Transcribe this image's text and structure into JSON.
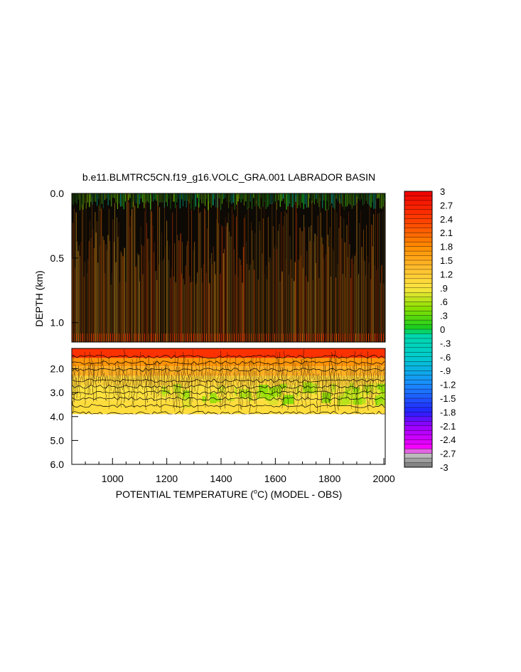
{
  "chart_data": {
    "type": "heatmap",
    "title": "b.e11.BLMTRC5CN.f19_g16.VOLC_GRA.001 LABRADOR BASIN",
    "xlabel_main": "POTENTIAL TEMPERATURE (",
    "xlabel_sup": "o",
    "xlabel_rest": "C) (MODEL - OBS)",
    "ylabel": "DEPTH (km)",
    "x_ticks": [
      "1000",
      "1200",
      "1400",
      "1600",
      "1800",
      "2000"
    ],
    "x_tick_values": [
      1000,
      1200,
      1400,
      1600,
      1800,
      2000
    ],
    "xlim": [
      850,
      2005
    ],
    "upper_panel": {
      "ylim": [
        0.0,
        1.15
      ],
      "y_ticks": [
        "0.0",
        "0.5",
        "1.0"
      ],
      "y_tick_values": [
        0.0,
        0.5,
        1.0
      ]
    },
    "lower_panel": {
      "ylim": [
        1.15,
        6.0
      ],
      "y_ticks": [
        "2.0",
        "3.0",
        "4.0",
        "5.0",
        "6.0"
      ],
      "y_tick_values": [
        2.0,
        3.0,
        4.0,
        5.0,
        6.0
      ],
      "data_bottom_depth": 3.9
    },
    "colorbar": {
      "labels": [
        "3",
        "2.7",
        "2.4",
        "2.1",
        "1.8",
        "1.5",
        "1.2",
        ".9",
        ".6",
        ".3",
        "0",
        "-.3",
        "-.6",
        "-.9",
        "-1.2",
        "-1.5",
        "-1.8",
        "-2.1",
        "-2.4",
        "-2.7",
        "-3"
      ],
      "range": [
        -3,
        3
      ]
    },
    "grid": false,
    "legend": "colorbar-right"
  }
}
